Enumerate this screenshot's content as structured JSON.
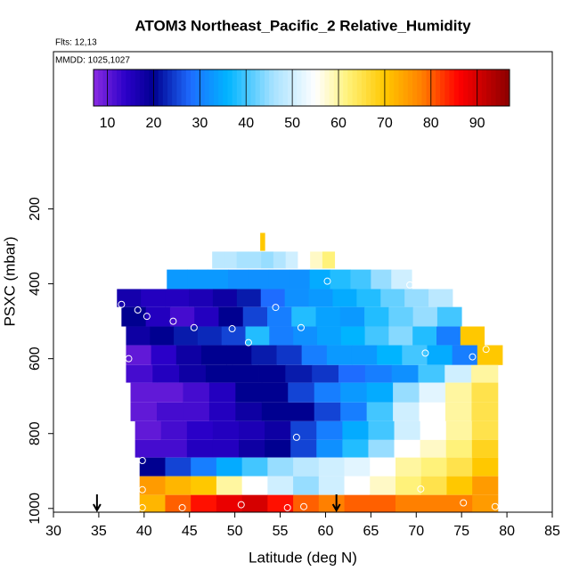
{
  "chart_data": {
    "type": "heatmap",
    "title": "ATOM3 Northeast_Pacific_2 Relative_Humidity",
    "subtitle": "Flts: 12,13",
    "annotation": "MMDD: 1025,1027",
    "x_label": "Latitude (deg N)",
    "y_label": "PSXC (mbar)",
    "xlim": [
      30,
      85
    ],
    "xticks": [
      30,
      35,
      40,
      45,
      50,
      55,
      60,
      65,
      70,
      75,
      80,
      85
    ],
    "ylim": [
      1010,
      -220
    ],
    "yticks": [
      200,
      400,
      600,
      800,
      1000
    ],
    "colorbar": {
      "range": [
        7,
        97
      ],
      "ticks": [
        10,
        20,
        30,
        40,
        50,
        60,
        70,
        80,
        90
      ],
      "stops": [
        [
          7,
          "#8a2be2"
        ],
        [
          14,
          "#2a00c8"
        ],
        [
          20,
          "#000090"
        ],
        [
          28,
          "#1e6cff"
        ],
        [
          36,
          "#00b4ff"
        ],
        [
          46,
          "#a8e2ff"
        ],
        [
          55,
          "#ffffff"
        ],
        [
          62,
          "#fff27a"
        ],
        [
          70,
          "#ffc800"
        ],
        [
          78,
          "#ff8000"
        ],
        [
          86,
          "#ff0000"
        ],
        [
          97,
          "#8b0000"
        ]
      ]
    },
    "rows": [
      {
        "pressure_range": [
          264,
          312
        ],
        "lat_range": [
          52.8,
          53.3
        ],
        "values": [
          70
        ]
      },
      {
        "pressure_range": [
          314,
          359
        ],
        "lat_range": [
          47.5,
          61
        ],
        "values": [
          48,
          48,
          46,
          46,
          45,
          47,
          50,
          55,
          58,
          62
        ]
      },
      {
        "pressure_range": [
          362,
          414
        ],
        "lat_range": [
          42.5,
          69.5
        ],
        "values": [
          33,
          33,
          33,
          32,
          32,
          32,
          32,
          35,
          38,
          40,
          45,
          50
        ]
      },
      {
        "pressure_range": [
          414,
          462
        ],
        "lat_range": [
          37,
          74
        ],
        "values": [
          17,
          15,
          15,
          16,
          18,
          22,
          28,
          32,
          33,
          35,
          38,
          42,
          45,
          48
        ]
      },
      {
        "pressure_range": [
          462,
          514
        ],
        "lat_range": [
          37.5,
          75
        ],
        "values": [
          20,
          15,
          12,
          15,
          20,
          25,
          30,
          38,
          34,
          33,
          38,
          42,
          45,
          40
        ]
      },
      {
        "pressure_range": [
          514,
          564
        ],
        "lat_range": [
          38,
          77.5
        ],
        "values": [
          18,
          20,
          22,
          23,
          25,
          38,
          30,
          32,
          34,
          36,
          40,
          44,
          38,
          30,
          70
        ]
      },
      {
        "pressure_range": [
          564,
          617
        ],
        "lat_range": [
          38,
          79.5
        ],
        "values": [
          10,
          14,
          18,
          20,
          20,
          22,
          24,
          30,
          33,
          33,
          36,
          40,
          35,
          30,
          70
        ]
      },
      {
        "pressure_range": [
          617,
          664
        ],
        "lat_range": [
          38,
          79
        ],
        "values": [
          12,
          15,
          18,
          20,
          20,
          20,
          22,
          24,
          28,
          30,
          32,
          40,
          50,
          60
        ]
      },
      {
        "pressure_range": [
          664,
          717
        ],
        "lat_range": [
          38.5,
          79
        ],
        "values": [
          10,
          10,
          12,
          15,
          20,
          20,
          25,
          30,
          33,
          35,
          45,
          52,
          60,
          65
        ]
      },
      {
        "pressure_range": [
          717,
          767
        ],
        "lat_range": [
          38.5,
          79
        ],
        "values": [
          10,
          12,
          12,
          15,
          18,
          20,
          20,
          25,
          30,
          40,
          50,
          55,
          60,
          65
        ]
      },
      {
        "pressure_range": [
          767,
          817
        ],
        "lat_range": [
          39,
          79
        ],
        "values": [
          10,
          12,
          14,
          15,
          16,
          18,
          25,
          30,
          35,
          40,
          50,
          55,
          60,
          65
        ]
      },
      {
        "pressure_range": [
          817,
          864
        ],
        "lat_range": [
          39,
          79
        ],
        "values": [
          12,
          12,
          15,
          15,
          18,
          20,
          25,
          32,
          38,
          45,
          55,
          58,
          62,
          68
        ]
      },
      {
        "pressure_range": [
          864,
          914
        ],
        "lat_range": [
          39.5,
          79
        ],
        "values": [
          20,
          25,
          30,
          35,
          40,
          45,
          48,
          50,
          52,
          55,
          60,
          62,
          65,
          70
        ]
      },
      {
        "pressure_range": [
          914,
          964
        ],
        "lat_range": [
          39.5,
          79
        ],
        "values": [
          75,
          72,
          70,
          60,
          55,
          50,
          45,
          50,
          55,
          58,
          62,
          65,
          70,
          75
        ]
      },
      {
        "pressure_range": [
          964,
          1010
        ],
        "lat_range": [
          39.5,
          79
        ],
        "values": [
          72,
          80,
          85,
          88,
          90,
          85,
          80,
          78,
          80,
          80,
          78,
          78,
          78,
          75
        ]
      }
    ],
    "points": {
      "x": [
        37.5,
        39.3,
        40.3,
        43.2,
        45.5,
        49.7,
        51.5,
        54.5,
        57.3,
        60.2,
        69.3,
        71,
        76.2,
        77.7,
        38.3,
        39.8,
        56.8,
        39.8,
        70.5,
        39.8,
        44.2,
        50.7,
        55.8,
        57.6,
        75.2,
        78.7
      ],
      "y": [
        455,
        470,
        487,
        500,
        517,
        520,
        557,
        463,
        517,
        393,
        403,
        585,
        595,
        575,
        600,
        872,
        810,
        950,
        948,
        998,
        998,
        990,
        998,
        995,
        985,
        995
      ]
    },
    "arrows": [
      34.8,
      61.2
    ]
  }
}
